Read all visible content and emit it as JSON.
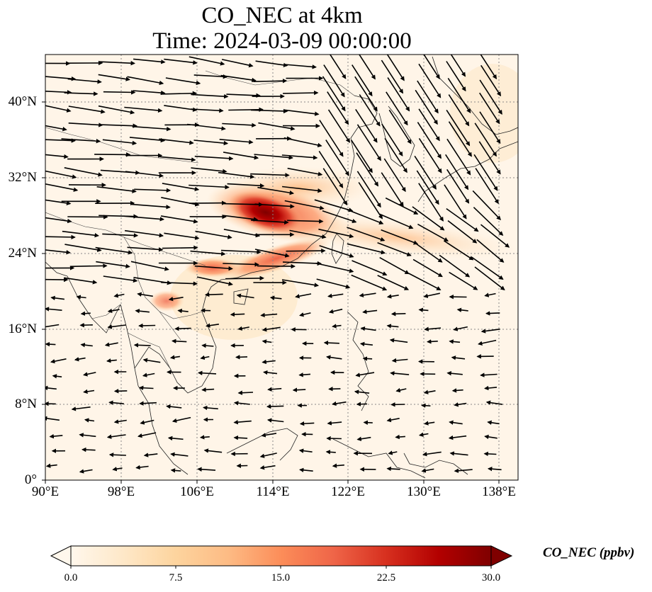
{
  "title": {
    "line1": "CO_NEC at 4km",
    "line2": "Time: 2024-03-09 00:00:00"
  },
  "map": {
    "projection": "PlateCarree",
    "extent_lon": [
      90,
      140
    ],
    "extent_lat": [
      0,
      45
    ],
    "gridlines": "dotted gray",
    "coastlines": true,
    "country_borders": true
  },
  "axes": {
    "x_ticks": [
      "90°E",
      "98°E",
      "106°E",
      "114°E",
      "122°E",
      "130°E",
      "138°E"
    ],
    "y_ticks": [
      "0°",
      "8°N",
      "16°N",
      "24°N",
      "32°N",
      "40°N"
    ]
  },
  "colorbar": {
    "label": "CO_NEC (ppbv)",
    "ticks": [
      "0.0",
      "7.5",
      "15.0",
      "22.5",
      "30.0"
    ],
    "range": [
      0,
      30
    ],
    "extend": "both",
    "colormap": [
      "#fff7ec",
      "#fee8c8",
      "#fdd49e",
      "#fdbb84",
      "#fc8d59",
      "#ef6548",
      "#d7301f",
      "#b30000",
      "#7f0000"
    ]
  },
  "field_highlights": [
    {
      "region": "central-east China plume",
      "lon": 113,
      "lat": 28.5,
      "value": 27
    },
    {
      "region": "south China coast plume",
      "lon": 115,
      "lat": 25,
      "value": 14
    },
    {
      "region": "outflow band East China Sea",
      "lon": 125,
      "lat": 26,
      "value": 6
    },
    {
      "region": "northern Laos/Vietnam",
      "lon": 105,
      "lat": 22.5,
      "value": 11
    },
    {
      "region": "northern Thailand",
      "lon": 101.5,
      "lat": 18.5,
      "value": 8
    }
  ],
  "wind_field": {
    "quantity": "wind vectors",
    "pattern": "strong westerlies north of 20°N, northwesterly flow over Korea/Japan, weak easterlies over Indochina and South China Sea"
  }
}
